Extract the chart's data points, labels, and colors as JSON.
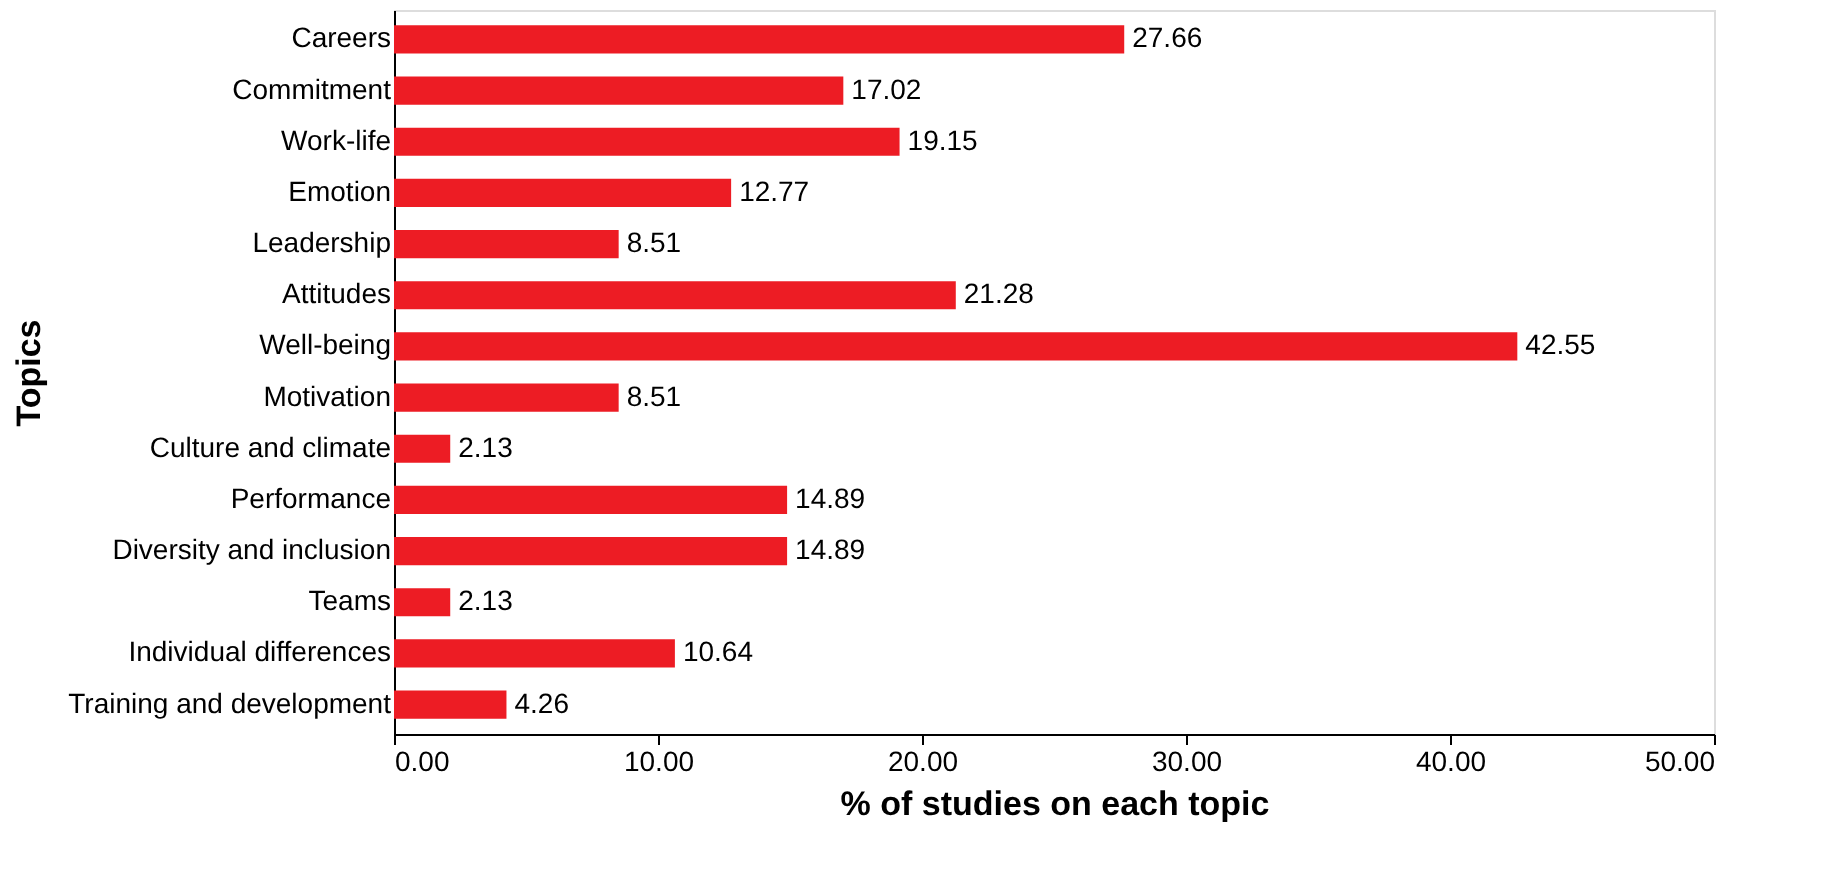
{
  "chart_data": {
    "type": "bar",
    "orientation": "horizontal",
    "xlabel": "% of studies on each topic",
    "ylabel": "Topics",
    "categories": [
      "Careers",
      "Commitment",
      "Work-life",
      "Emotion",
      "Leadership",
      "Attitudes",
      "Well-being",
      "Motivation",
      "Culture and climate",
      "Performance",
      "Diversity and inclusion",
      "Teams",
      "Individual differences",
      "Training and development"
    ],
    "values": [
      27.66,
      17.02,
      19.15,
      12.77,
      8.51,
      21.28,
      42.55,
      8.51,
      2.13,
      14.89,
      14.89,
      2.13,
      10.64,
      4.26
    ],
    "color": "#ed1c24",
    "data_labels": true,
    "grid": false,
    "xlim": [
      0,
      50
    ],
    "xticks": [
      {
        "value": 0,
        "label": "0.00"
      },
      {
        "value": 10,
        "label": "10.00"
      },
      {
        "value": 20,
        "label": "20.00"
      },
      {
        "value": 30,
        "label": "30.00"
      },
      {
        "value": 40,
        "label": "40.00"
      },
      {
        "value": 50,
        "label": "50.00"
      }
    ]
  }
}
